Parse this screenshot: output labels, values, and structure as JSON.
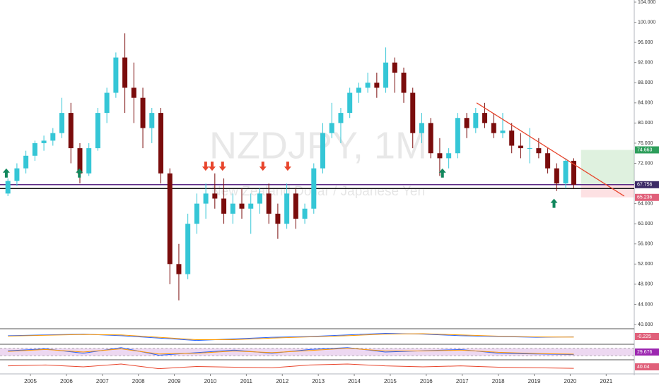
{
  "chart_data": {
    "type": "candlestick",
    "symbol": "NZDJPY, 1M",
    "description": "New Zealand Dollar / Japanese Yen",
    "x": [
      2004.375,
      2004.625,
      2004.875,
      2005.125,
      2005.375,
      2005.625,
      2005.875,
      2006.125,
      2006.375,
      2006.625,
      2006.875,
      2007.125,
      2007.375,
      2007.625,
      2007.875,
      2008.125,
      2008.375,
      2008.625,
      2008.875,
      2009.125,
      2009.375,
      2009.625,
      2009.875,
      2010.125,
      2010.375,
      2010.625,
      2010.875,
      2011.125,
      2011.375,
      2011.625,
      2011.875,
      2012.125,
      2012.375,
      2012.625,
      2012.875,
      2013.125,
      2013.375,
      2013.625,
      2013.875,
      2014.125,
      2014.375,
      2014.625,
      2014.875,
      2015.125,
      2015.375,
      2015.625,
      2015.875,
      2016.125,
      2016.375,
      2016.625,
      2016.875,
      2017.125,
      2017.375,
      2017.625,
      2017.875,
      2018.125,
      2018.375,
      2018.625,
      2018.875,
      2019.125,
      2019.375,
      2019.625,
      2019.875,
      2020.1
    ],
    "open": [
      66,
      68.5,
      71,
      73.5,
      76,
      76.5,
      78,
      82,
      75,
      70,
      75,
      82,
      86,
      93,
      87,
      85,
      79,
      82,
      70,
      52,
      50,
      60,
      64,
      66,
      65,
      62,
      64,
      63,
      64,
      66,
      62,
      60,
      66,
      61,
      63,
      71,
      78,
      80,
      82,
      86,
      87,
      88,
      87,
      92,
      90,
      86,
      78,
      80,
      74,
      73,
      74,
      81,
      79,
      82,
      80,
      78,
      78.5,
      75.5,
      75,
      75,
      74,
      71,
      68,
      72.5
    ],
    "high": [
      69,
      72,
      74.5,
      76.5,
      77.5,
      79,
      85,
      84,
      76,
      76,
      83,
      87,
      94,
      97.8,
      92,
      87,
      83,
      83,
      71,
      56,
      62,
      66,
      68,
      70,
      69,
      66,
      67,
      66,
      67,
      68,
      64,
      68,
      67,
      64,
      72,
      80,
      84,
      83,
      87,
      88,
      90,
      90,
      95,
      93,
      91,
      87,
      82,
      81,
      77,
      75,
      82,
      82,
      83,
      84,
      82,
      82,
      80,
      78,
      79,
      77,
      75,
      72,
      73,
      73
    ],
    "low": [
      65.5,
      67.5,
      70,
      72.5,
      74.5,
      75.5,
      77,
      72,
      68,
      69.5,
      74.5,
      80,
      85,
      82,
      80,
      75,
      76,
      68,
      48,
      44.8,
      49,
      58,
      61,
      63,
      60,
      60,
      61,
      58,
      62,
      60,
      57,
      59,
      59,
      60,
      62,
      70,
      77,
      76,
      81,
      84,
      86,
      85,
      86,
      86,
      84,
      75,
      76,
      73,
      69.5,
      71,
      73,
      77,
      78,
      79,
      77,
      77,
      74,
      73,
      72,
      73,
      70,
      66.5,
      67,
      67
    ],
    "close": [
      68.5,
      71,
      73.5,
      76,
      76.5,
      78,
      82,
      75,
      70,
      75,
      82,
      86,
      93,
      87,
      85,
      79,
      82,
      70,
      52,
      50,
      60,
      64,
      66,
      65,
      62,
      64,
      63,
      64,
      66,
      62,
      60,
      66,
      61,
      63,
      71,
      78,
      80,
      82,
      86,
      87,
      88,
      87,
      92,
      90,
      86,
      78,
      80,
      74,
      73,
      74,
      81,
      79,
      82,
      80,
      78,
      78.5,
      75.5,
      75,
      75,
      74,
      71,
      68,
      72.5,
      67.756
    ],
    "up_color": "#35c6d6",
    "down_color": "#7a0c0c",
    "xlim": [
      2004.155,
      2021.78
    ],
    "xticks": [
      2005,
      2006,
      2007,
      2008,
      2009,
      2010,
      2011,
      2012,
      2013,
      2014,
      2015,
      2016,
      2017,
      2018,
      2019,
      2020,
      2021
    ],
    "ylim": [
      39.3,
      104.42
    ],
    "yticks": [
      {
        "value": 104,
        "label": "104.000"
      },
      {
        "value": 100,
        "label": "100.000"
      },
      {
        "value": 96,
        "label": "96.000"
      },
      {
        "value": 92,
        "label": "92.000"
      },
      {
        "value": 88,
        "label": "88.000"
      },
      {
        "value": 84,
        "label": "84.000"
      },
      {
        "value": 80,
        "label": "80.000"
      },
      {
        "value": 76,
        "label": "76.000"
      },
      {
        "value": 72,
        "label": "72.000"
      },
      {
        "value": 68,
        "label": "68.000"
      },
      {
        "value": 64,
        "label": "64.000"
      },
      {
        "value": 60,
        "label": "60.000"
      },
      {
        "value": 56,
        "label": "56.000"
      },
      {
        "value": 52,
        "label": "52.000"
      },
      {
        "value": 48,
        "label": "48.000"
      },
      {
        "value": 44,
        "label": "44.000"
      },
      {
        "value": 40,
        "label": "40.000"
      }
    ],
    "levels": [
      {
        "value": 67.756,
        "color": "#5b2a86"
      },
      {
        "value": 67.0,
        "color": "#111111"
      }
    ],
    "trendline": {
      "x": [
        2017.4,
        2021.5
      ],
      "y": [
        84,
        65.5
      ],
      "color": "#e8452c"
    },
    "position": {
      "x": [
        2020.3,
        2021.78
      ],
      "target": 74.663,
      "entry": 67.756,
      "stop": 65.236
    },
    "price_tags": [
      {
        "value": 74.663,
        "color": "#2e9e5b"
      },
      {
        "value": 67.756,
        "color": "#3b2a66"
      },
      {
        "value": 65.236,
        "color": "#e0607a"
      }
    ],
    "arrows_up": {
      "x": [
        2004.33,
        2006.36,
        2016.45,
        2019.55
      ],
      "y": [
        70,
        70,
        70,
        64
      ],
      "color": "#11875d"
    },
    "arrows_down": {
      "x": [
        2009.87,
        2010.05,
        2010.34,
        2011.46,
        2012.15
      ],
      "y": [
        71.5,
        71.5,
        71.5,
        71.5,
        71.5
      ],
      "color": "#e8452c"
    },
    "indicators": [
      {
        "name_key": "macd",
        "ylim": [
          -8,
          8
        ],
        "series": [
          {
            "color": "#2962ff",
            "values": [
              1,
              2,
              3,
              1,
              -2,
              -5,
              -3,
              -1,
              0,
              2,
              4,
              3,
              1,
              0,
              -1,
              -0.5
            ]
          },
          {
            "color": "#ff9800",
            "values": [
              0.5,
              1.5,
              2.5,
              2,
              -1,
              -4,
              -4,
              -2,
              -0.5,
              1,
              3,
              3.5,
              2,
              0.5,
              -0.5,
              -0.8
            ]
          }
        ],
        "tag": {
          "value": -0.225,
          "color": "#e0607a"
        }
      },
      {
        "name_key": "stoch",
        "ylim": [
          0,
          100
        ],
        "band": [
          20,
          80
        ],
        "series": [
          {
            "color": "#2962ff",
            "values": [
              60,
              75,
              40,
              85,
              25,
              45,
              65,
              40,
              70,
              85,
              50,
              60,
              70,
              40,
              35,
              30
            ]
          },
          {
            "color": "#ff9800",
            "values": [
              55,
              70,
              50,
              75,
              35,
              40,
              58,
              45,
              62,
              80,
              58,
              58,
              65,
              48,
              38,
              33
            ]
          }
        ],
        "tag": {
          "value": 29.676,
          "color": "#9c27b0"
        }
      },
      {
        "name_key": "rsi",
        "ylim": [
          20,
          80
        ],
        "series": [
          {
            "color": "#e8452c",
            "values": [
              55,
              60,
              50,
              65,
              40,
              52,
              48,
              45,
              60,
              65,
              55,
              50,
              55,
              48,
              45,
              42
            ]
          }
        ],
        "tag": {
          "value": 40.04,
          "color": "#e0607a"
        }
      }
    ]
  }
}
